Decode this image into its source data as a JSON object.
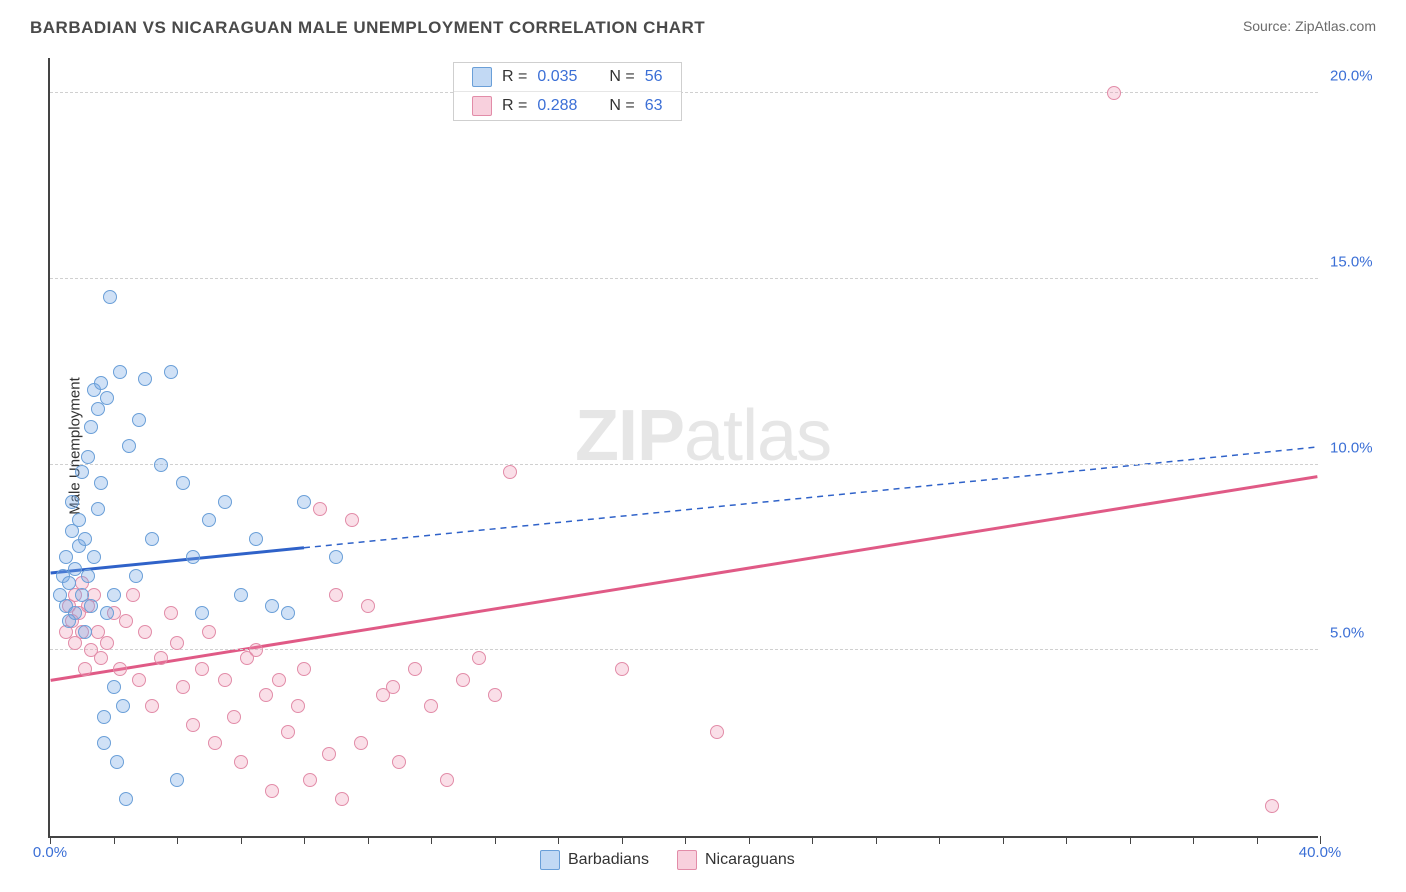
{
  "header": {
    "title": "BARBADIAN VS NICARAGUAN MALE UNEMPLOYMENT CORRELATION CHART",
    "source": "Source: ZipAtlas.com"
  },
  "chart": {
    "type": "scatter",
    "ylabel": "Male Unemployment",
    "xlim": [
      0,
      40
    ],
    "ylim": [
      0,
      21
    ],
    "yticks": [
      {
        "v": 5,
        "label": "5.0%"
      },
      {
        "v": 10,
        "label": "10.0%"
      },
      {
        "v": 15,
        "label": "15.0%"
      },
      {
        "v": 20,
        "label": "20.0%"
      }
    ],
    "xticks": [
      0,
      2,
      4,
      6,
      8,
      10,
      12,
      14,
      16,
      18,
      20,
      22,
      24,
      26,
      28,
      30,
      32,
      34,
      36,
      38,
      40
    ],
    "xaxis_labels": [
      {
        "v": 0,
        "label": "0.0%"
      },
      {
        "v": 40,
        "label": "40.0%"
      }
    ],
    "watermark": {
      "bold": "ZIP",
      "rest": "atlas"
    },
    "colors": {
      "blue_fill": "rgba(120,170,230,0.35)",
      "blue_stroke": "#6a9fd8",
      "blue_line": "#2f62c9",
      "pink_fill": "rgba(240,150,180,0.3)",
      "pink_stroke": "#e28ca8",
      "pink_line": "#e05a86",
      "axis": "#444444",
      "grid": "#d0d0d0",
      "tick_text": "#3b6fd6"
    },
    "legend_top": [
      {
        "series": "blue",
        "r_label": "R =",
        "r": "0.035",
        "n_label": "N =",
        "n": "56"
      },
      {
        "series": "pink",
        "r_label": "R =",
        "r": "0.288",
        "n_label": "N =",
        "n": "63"
      }
    ],
    "legend_bottom": [
      {
        "series": "blue",
        "label": "Barbadians"
      },
      {
        "series": "pink",
        "label": "Nicaraguans"
      }
    ],
    "trend_lines": {
      "blue": {
        "solid_from_x": 0,
        "solid_to_x": 8,
        "y0": 7.1,
        "y1_at40": 10.5
      },
      "pink": {
        "solid_from_x": 0,
        "solid_to_x": 40,
        "y0": 4.2,
        "y1_at40": 9.7
      }
    },
    "series": {
      "blue": [
        [
          0.3,
          6.5
        ],
        [
          0.4,
          7.0
        ],
        [
          0.5,
          6.2
        ],
        [
          0.5,
          7.5
        ],
        [
          0.6,
          6.8
        ],
        [
          0.6,
          5.8
        ],
        [
          0.7,
          8.2
        ],
        [
          0.7,
          9.0
        ],
        [
          0.8,
          7.2
        ],
        [
          0.8,
          6.0
        ],
        [
          0.9,
          7.8
        ],
        [
          0.9,
          8.5
        ],
        [
          1.0,
          9.8
        ],
        [
          1.0,
          6.5
        ],
        [
          1.1,
          5.5
        ],
        [
          1.1,
          8.0
        ],
        [
          1.2,
          7.0
        ],
        [
          1.2,
          10.2
        ],
        [
          1.3,
          11.0
        ],
        [
          1.3,
          6.2
        ],
        [
          1.4,
          12.0
        ],
        [
          1.4,
          7.5
        ],
        [
          1.5,
          8.8
        ],
        [
          1.5,
          11.5
        ],
        [
          1.6,
          12.2
        ],
        [
          1.6,
          9.5
        ],
        [
          1.7,
          3.2
        ],
        [
          1.7,
          2.5
        ],
        [
          1.8,
          6.0
        ],
        [
          1.8,
          11.8
        ],
        [
          1.9,
          14.5
        ],
        [
          2.0,
          4.0
        ],
        [
          2.0,
          6.5
        ],
        [
          2.1,
          2.0
        ],
        [
          2.2,
          12.5
        ],
        [
          2.3,
          3.5
        ],
        [
          2.4,
          1.0
        ],
        [
          2.5,
          10.5
        ],
        [
          2.7,
          7.0
        ],
        [
          2.8,
          11.2
        ],
        [
          3.0,
          12.3
        ],
        [
          3.2,
          8.0
        ],
        [
          3.5,
          10.0
        ],
        [
          3.8,
          12.5
        ],
        [
          4.0,
          1.5
        ],
        [
          4.2,
          9.5
        ],
        [
          4.5,
          7.5
        ],
        [
          4.8,
          6.0
        ],
        [
          5.0,
          8.5
        ],
        [
          5.5,
          9.0
        ],
        [
          6.0,
          6.5
        ],
        [
          6.5,
          8.0
        ],
        [
          7.0,
          6.2
        ],
        [
          7.5,
          6.0
        ],
        [
          8.0,
          9.0
        ],
        [
          9.0,
          7.5
        ]
      ],
      "pink": [
        [
          0.5,
          5.5
        ],
        [
          0.6,
          6.2
        ],
        [
          0.7,
          5.8
        ],
        [
          0.8,
          6.5
        ],
        [
          0.8,
          5.2
        ],
        [
          0.9,
          6.0
        ],
        [
          1.0,
          6.8
        ],
        [
          1.0,
          5.5
        ],
        [
          1.1,
          4.5
        ],
        [
          1.2,
          6.2
        ],
        [
          1.3,
          5.0
        ],
        [
          1.4,
          6.5
        ],
        [
          1.5,
          5.5
        ],
        [
          1.6,
          4.8
        ],
        [
          1.8,
          5.2
        ],
        [
          2.0,
          6.0
        ],
        [
          2.2,
          4.5
        ],
        [
          2.4,
          5.8
        ],
        [
          2.6,
          6.5
        ],
        [
          2.8,
          4.2
        ],
        [
          3.0,
          5.5
        ],
        [
          3.2,
          3.5
        ],
        [
          3.5,
          4.8
        ],
        [
          3.8,
          6.0
        ],
        [
          4.0,
          5.2
        ],
        [
          4.2,
          4.0
        ],
        [
          4.5,
          3.0
        ],
        [
          4.8,
          4.5
        ],
        [
          5.0,
          5.5
        ],
        [
          5.2,
          2.5
        ],
        [
          5.5,
          4.2
        ],
        [
          5.8,
          3.2
        ],
        [
          6.0,
          2.0
        ],
        [
          6.2,
          4.8
        ],
        [
          6.5,
          5.0
        ],
        [
          6.8,
          3.8
        ],
        [
          7.0,
          1.2
        ],
        [
          7.2,
          4.2
        ],
        [
          7.5,
          2.8
        ],
        [
          7.8,
          3.5
        ],
        [
          8.0,
          4.5
        ],
        [
          8.2,
          1.5
        ],
        [
          8.5,
          8.8
        ],
        [
          8.8,
          2.2
        ],
        [
          9.0,
          6.5
        ],
        [
          9.2,
          1.0
        ],
        [
          9.5,
          8.5
        ],
        [
          9.8,
          2.5
        ],
        [
          10.0,
          6.2
        ],
        [
          10.5,
          3.8
        ],
        [
          10.8,
          4.0
        ],
        [
          11.0,
          2.0
        ],
        [
          11.5,
          4.5
        ],
        [
          12.0,
          3.5
        ],
        [
          12.5,
          1.5
        ],
        [
          13.0,
          4.2
        ],
        [
          13.5,
          4.8
        ],
        [
          14.0,
          3.8
        ],
        [
          14.5,
          9.8
        ],
        [
          18.0,
          4.5
        ],
        [
          21.0,
          2.8
        ],
        [
          33.5,
          20.0
        ],
        [
          38.5,
          0.8
        ]
      ]
    }
  }
}
